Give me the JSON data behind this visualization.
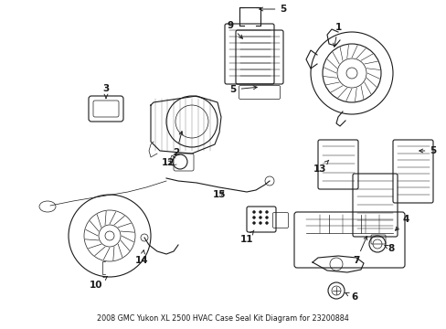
{
  "title": "2008 GMC Yukon XL 2500 HVAC Case Seal Kit Diagram for 23200884",
  "background_color": "#ffffff",
  "line_color": "#1a1a1a",
  "text_color": "#1a1a1a",
  "fig_width": 4.89,
  "fig_height": 3.6,
  "dpi": 100,
  "label_fontsize": 7.5,
  "caption_fontsize": 5.8
}
